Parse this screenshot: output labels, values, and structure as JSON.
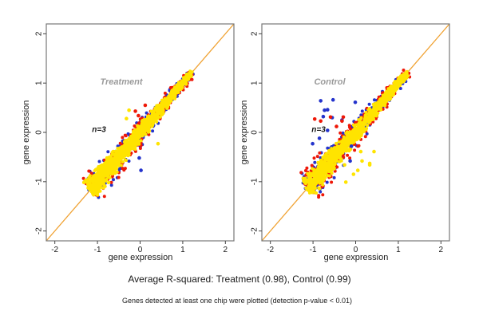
{
  "chart_data": {
    "type": "scatter",
    "layout": "two-panel side-by-side, replicate-vs-replicate gene expression scatter with identity line",
    "xlabel": "gene expression",
    "ylabel": "gene expression",
    "xlim": [
      -2.2,
      2.2
    ],
    "ylim": [
      -2.2,
      2.2
    ],
    "x_ticks": [
      -2,
      -1,
      0,
      1,
      2
    ],
    "y_ticks": [
      -2,
      -1,
      0,
      1,
      2
    ],
    "grid": false,
    "identity_line": {
      "slope": 1,
      "intercept": 0,
      "color": "#f0a232"
    },
    "colors": {
      "yellow": "#ffe400",
      "red": "#ee1808",
      "blue": "#2433cc",
      "axis_box": "#777777",
      "axis_tick": "#444444",
      "text": "#1a1a1a"
    },
    "panels": [
      {
        "title": "Treatment",
        "annotation": "n=3",
        "r_squared": 0.98,
        "main_cluster": {
          "shape": "dense cigar along y=x",
          "t_min": -1.15,
          "t_max": 1.2,
          "half_width_bottom": 0.18,
          "half_width_top": 0.05,
          "counts": {
            "blue": 300,
            "red": 330,
            "yellow": 1150
          },
          "spread_mult": {
            "blue": 0.78,
            "red": 0.85,
            "yellow": 0.55
          },
          "seed": 101
        },
        "outliers": [
          {
            "x": 0.02,
            "y": -0.77,
            "c": "blue"
          },
          {
            "x": -0.02,
            "y": -0.52,
            "c": "blue"
          },
          {
            "x": 0.42,
            "y": -0.23,
            "c": "yellow"
          },
          {
            "x": -0.26,
            "y": 0.45,
            "c": "yellow"
          },
          {
            "x": -0.32,
            "y": 0.28,
            "c": "yellow"
          },
          {
            "x": -0.11,
            "y": 0.43,
            "c": "red"
          },
          {
            "x": -0.04,
            "y": 0.34,
            "c": "red"
          },
          {
            "x": 0.12,
            "y": 0.55,
            "c": "red"
          }
        ]
      },
      {
        "title": "Control",
        "annotation": "n=3",
        "r_squared": 0.99,
        "main_cluster": {
          "shape": "dense cigar along y=x",
          "t_min": -1.12,
          "t_max": 1.2,
          "half_width_bottom": 0.18,
          "half_width_top": 0.05,
          "counts": {
            "blue": 330,
            "red": 340,
            "yellow": 1150
          },
          "spread_mult": {
            "blue": 0.85,
            "red": 0.9,
            "yellow": 0.55
          },
          "seed": 202
        },
        "outliers": [
          {
            "x": -0.82,
            "y": 0.64,
            "c": "blue"
          },
          {
            "x": -0.53,
            "y": 0.66,
            "c": "blue"
          },
          {
            "x": -0.01,
            "y": 0.61,
            "c": "blue"
          },
          {
            "x": -0.73,
            "y": 0.45,
            "c": "blue"
          },
          {
            "x": -0.66,
            "y": 0.46,
            "c": "blue"
          },
          {
            "x": -0.76,
            "y": 0.32,
            "c": "blue"
          },
          {
            "x": -0.55,
            "y": 0.3,
            "c": "blue"
          },
          {
            "x": -0.32,
            "y": 0.25,
            "c": "blue"
          },
          {
            "x": -0.66,
            "y": 0.04,
            "c": "blue"
          },
          {
            "x": -1.01,
            "y": -0.23,
            "c": "blue"
          },
          {
            "x": -0.85,
            "y": -0.12,
            "c": "blue"
          },
          {
            "x": -0.1,
            "y": -0.28,
            "c": "blue"
          },
          {
            "x": -0.13,
            "y": -0.58,
            "c": "blue"
          },
          {
            "x": -0.96,
            "y": 0.27,
            "c": "red"
          },
          {
            "x": -0.59,
            "y": 0.31,
            "c": "red"
          },
          {
            "x": -0.82,
            "y": 0.23,
            "c": "red"
          },
          {
            "x": -0.29,
            "y": 0.31,
            "c": "red"
          },
          {
            "x": -0.45,
            "y": 0.12,
            "c": "red"
          },
          {
            "x": -0.32,
            "y": 0.23,
            "c": "red"
          },
          {
            "x": 0.12,
            "y": -0.39,
            "c": "yellow"
          },
          {
            "x": 0.43,
            "y": -0.39,
            "c": "yellow"
          },
          {
            "x": 0.15,
            "y": -0.58,
            "c": "yellow"
          },
          {
            "x": -0.26,
            "y": -0.66,
            "c": "yellow"
          },
          {
            "x": 0.33,
            "y": -0.66,
            "c": "yellow"
          },
          {
            "x": 0.33,
            "y": -0.63,
            "c": "yellow"
          },
          {
            "x": 0.05,
            "y": -0.77,
            "c": "yellow"
          },
          {
            "x": -0.05,
            "y": -0.85,
            "c": "yellow"
          },
          {
            "x": -0.23,
            "y": -1.01,
            "c": "yellow"
          }
        ]
      }
    ],
    "caption": "Average R-squared: Treatment (0.98), Control (0.99)",
    "footnote": "Genes detected at least one chip were plotted (detection p-value < 0.01)"
  }
}
